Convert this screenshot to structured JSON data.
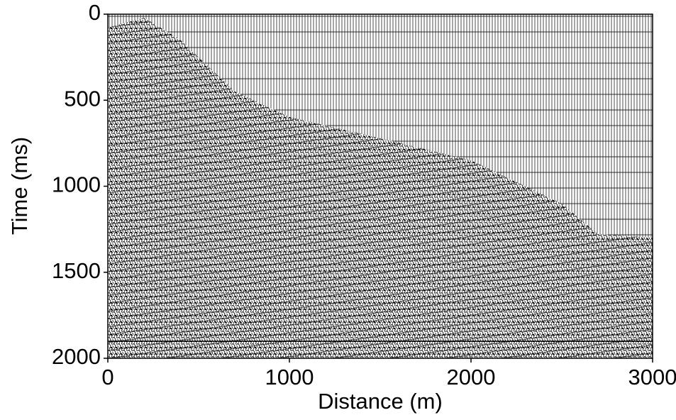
{
  "chart_data": {
    "type": "seismic",
    "x_label": "Distance (m)",
    "y_label": "Time (ms)",
    "xlim": [
      0,
      3000
    ],
    "ylim": [
      2000,
      0
    ],
    "xticks": [
      0,
      1000,
      2000,
      3000
    ],
    "yticks": [
      0,
      500,
      1000,
      1500,
      2000
    ]
  }
}
